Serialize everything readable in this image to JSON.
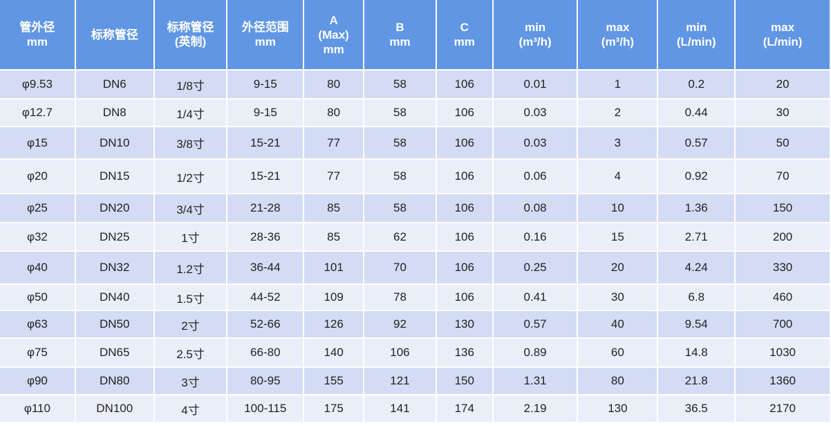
{
  "table": {
    "headers": [
      "管外径\nmm",
      "标称管径",
      "标称管径\n(英制)",
      "外径范围\nmm",
      "A\n(Max)\nmm",
      "B\nmm",
      "C\nmm",
      "min\n(m³/h)",
      "max\n(m³/h)",
      "min\n(L/min)",
      "max\n(L/min)"
    ],
    "rows": [
      [
        "φ9.53",
        "DN6",
        "1/8寸",
        "9-15",
        "80",
        "58",
        "106",
        "0.01",
        "1",
        "0.2",
        "20"
      ],
      [
        "φ12.7",
        "DN8",
        "1/4寸",
        "9-15",
        "80",
        "58",
        "106",
        "0.03",
        "2",
        "0.44",
        "30"
      ],
      [
        "φ15",
        "DN10",
        "3/8寸",
        "15-21",
        "77",
        "58",
        "106",
        "0.03",
        "3",
        "0.57",
        "50"
      ],
      [
        "φ20",
        "DN15",
        "1/2寸",
        "15-21",
        "77",
        "58",
        "106",
        "0.06",
        "4",
        "0.92",
        "70"
      ],
      [
        "φ25",
        "DN20",
        "3/4寸",
        "21-28",
        "85",
        "58",
        "106",
        "0.08",
        "10",
        "1.36",
        "150"
      ],
      [
        "φ32",
        "DN25",
        "1寸",
        "28-36",
        "85",
        "62",
        "106",
        "0.16",
        "15",
        "2.71",
        "200"
      ],
      [
        "φ40",
        "DN32",
        "1.2寸",
        "36-44",
        "101",
        "70",
        "106",
        "0.25",
        "20",
        "4.24",
        "330"
      ],
      [
        "φ50",
        "DN40",
        "1.5寸",
        "44-52",
        "109",
        "78",
        "106",
        "0.41",
        "30",
        "6.8",
        "460"
      ],
      [
        "φ63",
        "DN50",
        "2寸",
        "52-66",
        "126",
        "92",
        "130",
        "0.57",
        "40",
        "9.54",
        "700"
      ],
      [
        "φ75",
        "DN65",
        "2.5寸",
        "66-80",
        "140",
        "106",
        "136",
        "0.89",
        "60",
        "14.8",
        "1030"
      ],
      [
        "φ90",
        "DN80",
        "3寸",
        "80-95",
        "155",
        "121",
        "150",
        "1.31",
        "80",
        "21.8",
        "1360"
      ],
      [
        "φ110",
        "DN100",
        "4寸",
        "100-115",
        "175",
        "141",
        "174",
        "2.19",
        "130",
        "36.5",
        "2170"
      ]
    ]
  },
  "colors": {
    "header": "#6096e4",
    "row_odd": "#d3dcf4",
    "row_even": "#e9eef9"
  }
}
